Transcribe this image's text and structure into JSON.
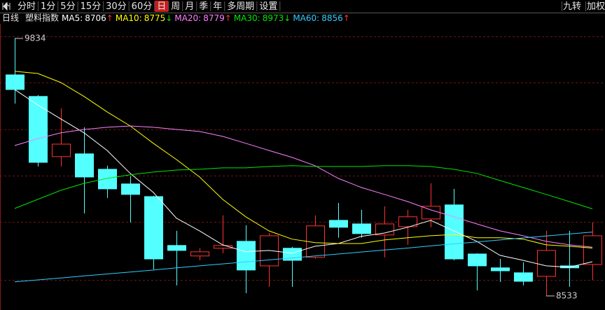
{
  "toolbar": {
    "buttons": [
      "分时",
      "1分",
      "5分",
      "15分",
      "30分",
      "60分",
      "日",
      "周",
      "月",
      "季",
      "年",
      "多周期",
      "设置"
    ],
    "active": 6,
    "right": [
      "九转",
      "加权"
    ]
  },
  "chart_data": {
    "type": "candlestick",
    "period": "日线",
    "title": "塑料指数",
    "up_color": "#ff3232",
    "down_color": "#54ffff",
    "open": [
      9650,
      9541,
      9237,
      9251,
      9173,
      9099,
      9035,
      8788,
      8735,
      8774,
      8809,
      8685,
      8774,
      8728,
      8915,
      8897,
      8841,
      8883,
      8922,
      8993,
      8745,
      8675,
      8650,
      8632,
      8685,
      8692
    ],
    "high": [
      9834,
      9548,
      9481,
      9385,
      9191,
      9138,
      9039,
      8862,
      8774,
      8940,
      8890,
      8851,
      8781,
      8940,
      9003,
      8968,
      8986,
      8968,
      9102,
      9074,
      8749,
      8720,
      8703,
      8862,
      8862,
      8904
    ],
    "low": [
      9505,
      9187,
      9187,
      8950,
      9028,
      8904,
      8667,
      8586,
      8713,
      8749,
      8547,
      8579,
      8579,
      8721,
      8827,
      8827,
      8728,
      8791,
      8880,
      8713,
      8561,
      8604,
      8586,
      8533,
      8579,
      8614
    ],
    "close": [
      9576,
      9208,
      9300,
      9134,
      9074,
      9046,
      8720,
      8763,
      8756,
      8788,
      8664,
      8837,
      8713,
      8887,
      8880,
      8848,
      8897,
      8933,
      8986,
      8720,
      8685,
      8660,
      8607,
      8763,
      8675,
      8837
    ],
    "high_mark": 0,
    "low_mark": 23,
    "ylim": [
      8462,
      9908
    ],
    "series": [
      {
        "name": "MA5:",
        "color": "#ffffff",
        "trend": "↑",
        "values": [
          9576,
          9498,
          9427,
          9357,
          9268,
          9152,
          9056,
          8926,
          8862,
          8791,
          8756,
          8763,
          8749,
          8784,
          8798,
          8834,
          8851,
          8880,
          8915,
          8862,
          8809,
          8738,
          8713,
          8685,
          8678,
          8706
        ]
      },
      {
        "name": "MA10:",
        "color": "#ffff00",
        "trend": "↓",
        "values": [
          9668,
          9657,
          9611,
          9541,
          9463,
          9392,
          9304,
          9222,
          9134,
          9021,
          8933,
          8862,
          8820,
          8802,
          8798,
          8798,
          8816,
          8827,
          8837,
          8844,
          8827,
          8827,
          8820,
          8791,
          8784,
          8775
        ]
      },
      {
        "name": "MA20:",
        "color": "#ff80ff",
        "trend": "↑",
        "values": [
          9293,
          9328,
          9357,
          9374,
          9385,
          9392,
          9385,
          9374,
          9364,
          9339,
          9304,
          9268,
          9233,
          9191,
          9127,
          9081,
          9046,
          9010,
          8968,
          8933,
          8897,
          8862,
          8837,
          8809,
          8791,
          8779
        ]
      },
      {
        "name": "MA30:",
        "color": "#00e600",
        "trend": "↓",
        "values": [
          8975,
          9021,
          9067,
          9102,
          9127,
          9145,
          9159,
          9169,
          9173,
          9180,
          9180,
          9187,
          9191,
          9187,
          9187,
          9187,
          9191,
          9191,
          9187,
          9173,
          9152,
          9116,
          9081,
          9046,
          9010,
          8973
        ]
      },
      {
        "name": "MA60:",
        "color": "#33ccff",
        "trend": "↑",
        "values": [
          8604,
          8614,
          8624,
          8634,
          8644,
          8654,
          8664,
          8675,
          8685,
          8695,
          8705,
          8715,
          8725,
          8735,
          8745,
          8755,
          8765,
          8775,
          8786,
          8796,
          8806,
          8816,
          8826,
          8836,
          8846,
          8856
        ]
      }
    ]
  }
}
